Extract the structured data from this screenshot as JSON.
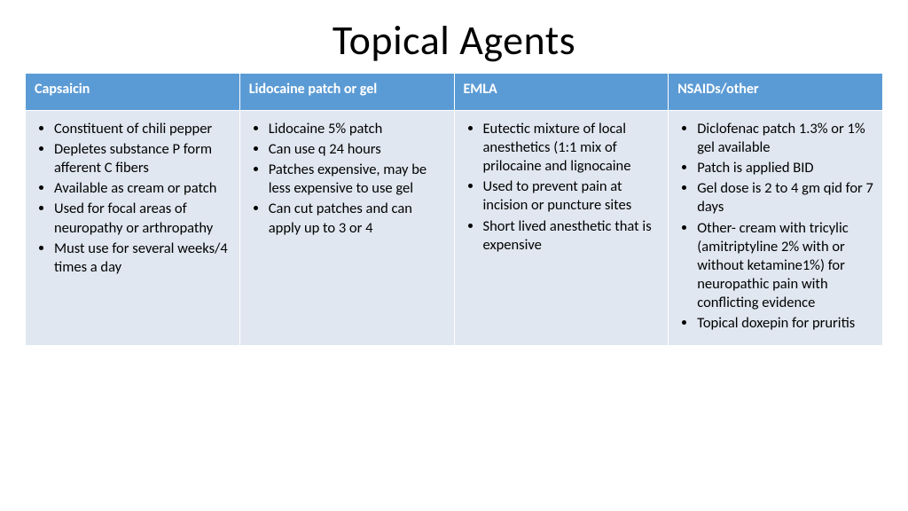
{
  "title": "Topical Agents",
  "table": {
    "header_bg": "#5b9bd5",
    "header_fg": "#ffffff",
    "cell_bg": "#e0e7f0",
    "border_color": "#ffffff",
    "columns": [
      {
        "header": "Capsaicin",
        "bullets": [
          "Constituent of chili pepper",
          "Depletes substance P form afferent C fibers",
          "Available as cream or patch",
          "Used for focal areas of neuropathy or arthropathy",
          "Must use for several weeks/4 times a day"
        ]
      },
      {
        "header": "Lidocaine patch or gel",
        "bullets": [
          "Lidocaine 5% patch",
          "Can use q 24 hours",
          "Patches expensive, may be less expensive to use gel",
          "Can cut patches and can apply up to 3 or 4"
        ]
      },
      {
        "header": "EMLA",
        "bullets": [
          "Eutectic mixture of local anesthetics (1:1 mix of prilocaine and lignocaine",
          "Used to prevent pain at incision or puncture sites",
          "Short lived anesthetic that is expensive"
        ]
      },
      {
        "header": "NSAIDs/other",
        "bullets": [
          "Diclofenac patch  1.3% or 1% gel available",
          "Patch is applied BID",
          "Gel dose is 2 to 4 gm qid for 7 days",
          "Other- cream with tricylic (amitriptyline 2% with or without ketamine1%) for neuropathic pain with conflicting evidence",
          "Topical doxepin for pruritis"
        ]
      }
    ]
  }
}
